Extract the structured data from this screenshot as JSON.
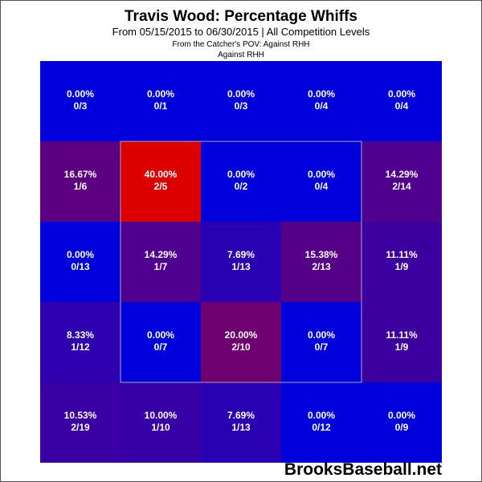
{
  "chart_data": {
    "type": "heatmap",
    "title": "Travis Wood: Percentage Whiffs",
    "subtitle": "From 05/15/2015 to 06/30/2015 | All Competition Levels",
    "pov_label": "From the Catcher's POV:   Against RHH",
    "hand_label": "Against RHH",
    "grid": [
      [
        {
          "pct": "0.00%",
          "frac": "0/3",
          "value": 0.0
        },
        {
          "pct": "0.00%",
          "frac": "0/1",
          "value": 0.0
        },
        {
          "pct": "0.00%",
          "frac": "0/3",
          "value": 0.0
        },
        {
          "pct": "0.00%",
          "frac": "0/4",
          "value": 0.0
        },
        {
          "pct": "0.00%",
          "frac": "0/4",
          "value": 0.0
        }
      ],
      [
        {
          "pct": "16.67%",
          "frac": "1/6",
          "value": 16.67
        },
        {
          "pct": "40.00%",
          "frac": "2/5",
          "value": 40.0
        },
        {
          "pct": "0.00%",
          "frac": "0/2",
          "value": 0.0
        },
        {
          "pct": "0.00%",
          "frac": "0/4",
          "value": 0.0
        },
        {
          "pct": "14.29%",
          "frac": "2/14",
          "value": 14.29
        }
      ],
      [
        {
          "pct": "0.00%",
          "frac": "0/13",
          "value": 0.0
        },
        {
          "pct": "14.29%",
          "frac": "1/7",
          "value": 14.29
        },
        {
          "pct": "7.69%",
          "frac": "1/13",
          "value": 7.69
        },
        {
          "pct": "15.38%",
          "frac": "2/13",
          "value": 15.38
        },
        {
          "pct": "11.11%",
          "frac": "1/9",
          "value": 11.11
        }
      ],
      [
        {
          "pct": "8.33%",
          "frac": "1/12",
          "value": 8.33
        },
        {
          "pct": "0.00%",
          "frac": "0/7",
          "value": 0.0
        },
        {
          "pct": "20.00%",
          "frac": "2/10",
          "value": 20.0
        },
        {
          "pct": "0.00%",
          "frac": "0/7",
          "value": 0.0
        },
        {
          "pct": "11.11%",
          "frac": "1/9",
          "value": 11.11
        }
      ],
      [
        {
          "pct": "10.53%",
          "frac": "2/19",
          "value": 10.53
        },
        {
          "pct": "10.00%",
          "frac": "1/10",
          "value": 10.0
        },
        {
          "pct": "7.69%",
          "frac": "1/13",
          "value": 7.69
        },
        {
          "pct": "0.00%",
          "frac": "0/12",
          "value": 0.0
        },
        {
          "pct": "0.00%",
          "frac": "0/9",
          "value": 0.0
        }
      ]
    ],
    "color_low": "#0000dd",
    "color_high": "#dd0000",
    "color_max_value": 40,
    "strike_zone_border_color": "#aaaaaa"
  },
  "footer": {
    "brand": "BrooksBaseball.net"
  }
}
